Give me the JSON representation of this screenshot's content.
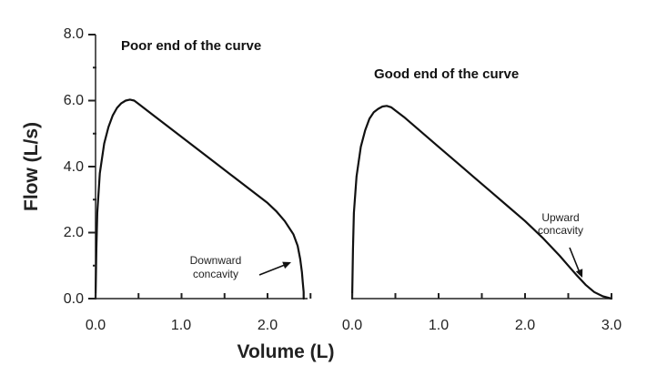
{
  "chart_data": [
    {
      "type": "line",
      "title": "Poor end of the curve",
      "xlabel": "Volume (L)",
      "ylabel": "Flow (L/s)",
      "xlim": [
        0,
        2.5
      ],
      "ylim": [
        0,
        8.0
      ],
      "x_ticks": [
        "0.0",
        "1.0",
        "2.0"
      ],
      "y_ticks": [
        "0.0",
        "2.0",
        "4.0",
        "6.0",
        "8.0"
      ],
      "series": [
        {
          "x": [
            0.0,
            0.01,
            0.02,
            0.05,
            0.1,
            0.15,
            0.2,
            0.25,
            0.3,
            0.35,
            0.4,
            0.45,
            0.5,
            0.6,
            0.8,
            1.0,
            1.2,
            1.4,
            1.6,
            1.8,
            2.0,
            2.1,
            2.2,
            2.3,
            2.35,
            2.38,
            2.4,
            2.41,
            2.42,
            2.42
          ],
          "y": [
            0.0,
            1.5,
            2.6,
            3.8,
            4.7,
            5.2,
            5.55,
            5.78,
            5.92,
            6.0,
            6.03,
            6.0,
            5.9,
            5.7,
            5.3,
            4.9,
            4.5,
            4.1,
            3.7,
            3.3,
            2.9,
            2.65,
            2.35,
            1.95,
            1.6,
            1.2,
            0.8,
            0.5,
            0.2,
            0.0
          ]
        }
      ],
      "annotations": [
        {
          "text": [
            "Downward",
            "concavity"
          ],
          "arrow_to": [
            2.4,
            1.1
          ]
        }
      ]
    },
    {
      "type": "line",
      "title": "Good end of the curve",
      "xlabel": "Volume (L)",
      "ylabel": "",
      "xlim": [
        0,
        3.0
      ],
      "ylim": [
        0,
        8.0
      ],
      "x_ticks": [
        "0.0",
        "1.0",
        "2.0",
        "3.0"
      ],
      "series": [
        {
          "x": [
            0.0,
            0.01,
            0.02,
            0.05,
            0.1,
            0.15,
            0.2,
            0.25,
            0.3,
            0.35,
            0.4,
            0.45,
            0.5,
            0.6,
            0.8,
            1.0,
            1.2,
            1.4,
            1.6,
            1.8,
            2.0,
            2.2,
            2.4,
            2.5,
            2.6,
            2.7,
            2.8,
            2.9,
            3.0
          ],
          "y": [
            0.0,
            1.5,
            2.6,
            3.7,
            4.6,
            5.1,
            5.45,
            5.65,
            5.75,
            5.82,
            5.84,
            5.8,
            5.7,
            5.5,
            5.05,
            4.6,
            4.15,
            3.7,
            3.25,
            2.8,
            2.35,
            1.85,
            1.3,
            1.0,
            0.7,
            0.42,
            0.2,
            0.07,
            0.0
          ]
        }
      ],
      "annotations": [
        {
          "text": [
            "Upward",
            "concavity"
          ],
          "arrow_to": [
            2.67,
            0.55
          ]
        }
      ]
    }
  ]
}
